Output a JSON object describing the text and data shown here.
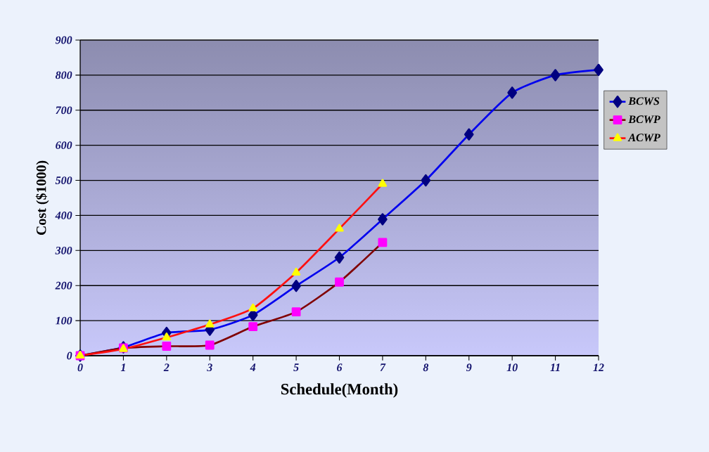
{
  "chart_data": {
    "type": "line",
    "xlabel": "Schedule(Month)",
    "ylabel": "Cost ($1000)",
    "xlim": [
      0,
      12
    ],
    "xticks": [
      0,
      1,
      2,
      3,
      4,
      5,
      6,
      7,
      8,
      9,
      10,
      11,
      12
    ],
    "ylim": [
      0,
      900
    ],
    "yticks": [
      0,
      100,
      200,
      300,
      400,
      500,
      600,
      700,
      800,
      900
    ],
    "grid": "y",
    "legend": "right",
    "series": [
      {
        "name": "BCWS",
        "color": "#000080",
        "marker": "diamond",
        "x": [
          0,
          1,
          2,
          3,
          4,
          5,
          6,
          7,
          8,
          9,
          10,
          11,
          12
        ],
        "values": [
          0,
          24,
          65,
          74,
          116,
          199,
          280,
          389,
          500,
          631,
          750,
          800,
          815
        ]
      },
      {
        "name": "BCWP",
        "color": "#ff00ff",
        "marker": "square",
        "x": [
          0,
          1,
          2,
          3,
          4,
          5,
          6,
          7
        ],
        "values": [
          0,
          22,
          27,
          30,
          83,
          125,
          210,
          323
        ]
      },
      {
        "name": "ACWP",
        "color": "#ffff00",
        "marker": "triangle",
        "x": [
          0,
          1,
          2,
          3,
          4,
          5,
          6,
          7
        ],
        "values": [
          0,
          19,
          52,
          89,
          135,
          237,
          362,
          490
        ]
      }
    ]
  }
}
